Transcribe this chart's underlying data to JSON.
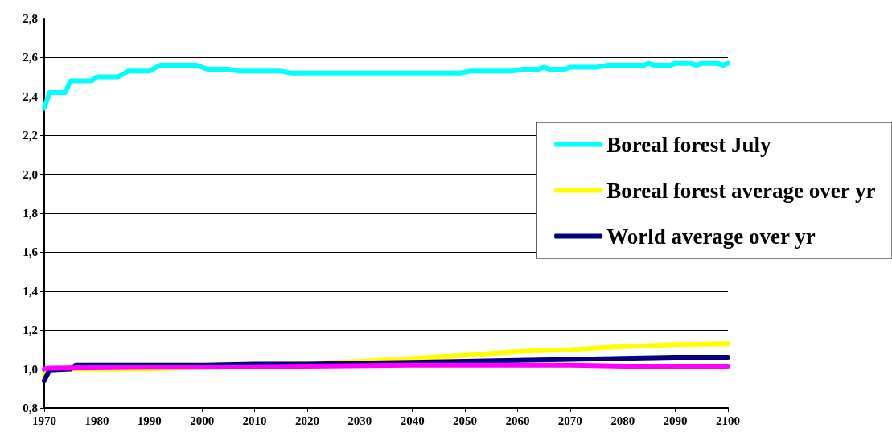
{
  "chart_data": {
    "type": "line",
    "legend": "right",
    "grid": "y",
    "marker": "none",
    "line_style": "solid",
    "xlim": [
      1970,
      2100
    ],
    "xticks": [
      1970,
      1980,
      1990,
      2000,
      2010,
      2020,
      2030,
      2040,
      2050,
      2060,
      2070,
      2080,
      2090,
      2100
    ],
    "ylim": [
      0.8,
      2.8
    ],
    "yticks": [
      {
        "value": 0.8,
        "label": "0,8"
      },
      {
        "value": 1.0,
        "label": "1,0"
      },
      {
        "value": 1.2,
        "label": "1,2"
      },
      {
        "value": 1.4,
        "label": "1,4"
      },
      {
        "value": 1.6,
        "label": "1,6"
      },
      {
        "value": 1.8,
        "label": "1,8"
      },
      {
        "value": 2.0,
        "label": "2,0"
      },
      {
        "value": 2.2,
        "label": "2,2"
      },
      {
        "value": 2.4,
        "label": "2,4"
      },
      {
        "value": 2.6,
        "label": "2,6"
      },
      {
        "value": 2.8,
        "label": "2,8"
      }
    ],
    "series": [
      {
        "name": "Boreal forest July",
        "color": "#00ffff",
        "x": [
          1970,
          1971,
          1974,
          1975,
          1979,
          1980,
          1984,
          1986,
          1990,
          1992,
          1999,
          2001,
          2005,
          2007,
          2015,
          2017,
          2049,
          2051,
          2059,
          2061,
          2064,
          2065,
          2066,
          2069,
          2070,
          2075,
          2077,
          2084,
          2085,
          2086,
          2089,
          2090,
          2093,
          2094,
          2095,
          2098,
          2099,
          2100
        ],
        "values": [
          2.34,
          2.42,
          2.42,
          2.48,
          2.48,
          2.5,
          2.5,
          2.53,
          2.53,
          2.56,
          2.56,
          2.54,
          2.54,
          2.53,
          2.53,
          2.52,
          2.52,
          2.53,
          2.53,
          2.54,
          2.54,
          2.55,
          2.54,
          2.54,
          2.55,
          2.55,
          2.56,
          2.56,
          2.57,
          2.56,
          2.56,
          2.57,
          2.57,
          2.56,
          2.57,
          2.57,
          2.56,
          2.57
        ]
      },
      {
        "name": "Boreal forest average over yr",
        "color": "#ffff00",
        "x": [
          1970,
          1971,
          1980,
          1990,
          2000,
          2010,
          2020,
          2030,
          2040,
          2050,
          2060,
          2070,
          2080,
          2090,
          2100
        ],
        "values": [
          0.97,
          1.0,
          1.0,
          1.0,
          null,
          null,
          null,
          1.04,
          1.055,
          1.07,
          1.09,
          1.1,
          1.115,
          1.125,
          1.13
        ]
      },
      {
        "name": "World average over yr",
        "color": "#000080",
        "x": [
          1970,
          1971,
          1975,
          1976,
          1990,
          2000,
          2010,
          2020,
          2030,
          2040,
          2050,
          2060,
          2070,
          2080,
          2090,
          2100
        ],
        "values": [
          0.94,
          0.995,
          1.0,
          1.02,
          1.02,
          1.02,
          1.025,
          1.025,
          1.03,
          1.035,
          1.04,
          1.045,
          1.05,
          1.055,
          1.06,
          1.06
        ]
      },
      {
        "color": "#ff00ff",
        "x": [
          1970,
          1971,
          1990,
          2000,
          2020,
          2040,
          2050,
          2060,
          2070,
          2080,
          2090,
          2100
        ],
        "values": [
          1.0,
          1.005,
          1.01,
          1.01,
          1.015,
          1.02,
          1.02,
          1.02,
          1.02,
          1.015,
          1.015,
          1.015
        ]
      }
    ]
  }
}
